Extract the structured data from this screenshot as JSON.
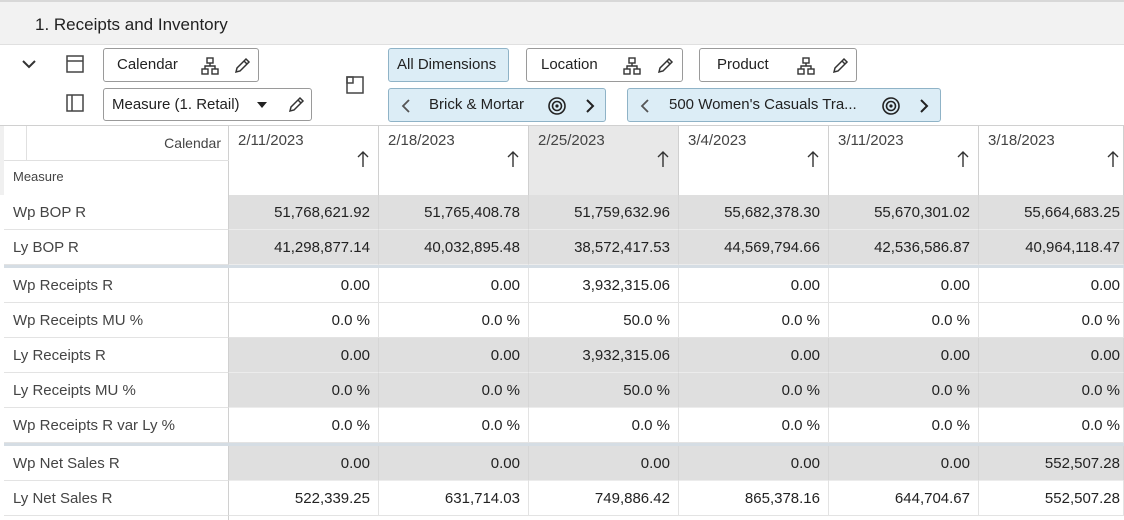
{
  "header": {
    "title": "1. Receipts and Inventory"
  },
  "toolbar": {
    "calendar": "Calendar",
    "measure": "Measure (1. Retail)",
    "all_dimensions": "All Dimensions",
    "location": "Location",
    "product": "Product",
    "location_value": "Brick & Mortar",
    "product_value": "500 Women's Casuals Tra..."
  },
  "table": {
    "corner_column": "Calendar",
    "corner_row": "Measure",
    "columns": [
      "2/11/2023",
      "2/18/2023",
      "2/25/2023",
      "3/4/2023",
      "3/11/2023",
      "3/18/2023"
    ],
    "groups": [
      {
        "rows": [
          {
            "label": "Wp BOP R",
            "cells": [
              "51,768,621.92",
              "51,765,408.78",
              "51,759,632.96",
              "55,682,378.30",
              "55,670,301.02",
              "55,664,683.25"
            ]
          },
          {
            "label": "Ly BOP R",
            "cells": [
              "41,298,877.14",
              "40,032,895.48",
              "38,572,417.53",
              "44,569,794.66",
              "42,536,586.87",
              "40,964,118.47"
            ]
          }
        ]
      },
      {
        "rows": [
          {
            "label": "Wp Receipts R",
            "cells": [
              "0.00",
              "0.00",
              "3,932,315.06",
              "0.00",
              "0.00",
              "0.00"
            ]
          },
          {
            "label": "Wp Receipts MU %",
            "cells": [
              "0.0 %",
              "0.0 %",
              "50.0 %",
              "0.0 %",
              "0.0 %",
              "0.0 %"
            ]
          },
          {
            "label": "Ly Receipts R",
            "cells": [
              "0.00",
              "0.00",
              "3,932,315.06",
              "0.00",
              "0.00",
              "0.00"
            ]
          },
          {
            "label": "Ly Receipts MU %",
            "cells": [
              "0.0 %",
              "0.0 %",
              "50.0 %",
              "0.0 %",
              "0.0 %",
              "0.0 %"
            ]
          },
          {
            "label": "Wp Receipts R var Ly %",
            "cells": [
              "0.0 %",
              "0.0 %",
              "0.0 %",
              "0.0 %",
              "0.0 %",
              "0.0 %"
            ]
          }
        ]
      },
      {
        "rows": [
          {
            "label": "Wp Net Sales R",
            "cells": [
              "0.00",
              "0.00",
              "0.00",
              "0.00",
              "0.00",
              "552,507.28"
            ]
          },
          {
            "label": "Ly Net Sales R",
            "cells": [
              "522,339.25",
              "631,714.03",
              "749,886.42",
              "865,378.16",
              "644,704.67",
              "552,507.28"
            ]
          }
        ]
      }
    ]
  }
}
